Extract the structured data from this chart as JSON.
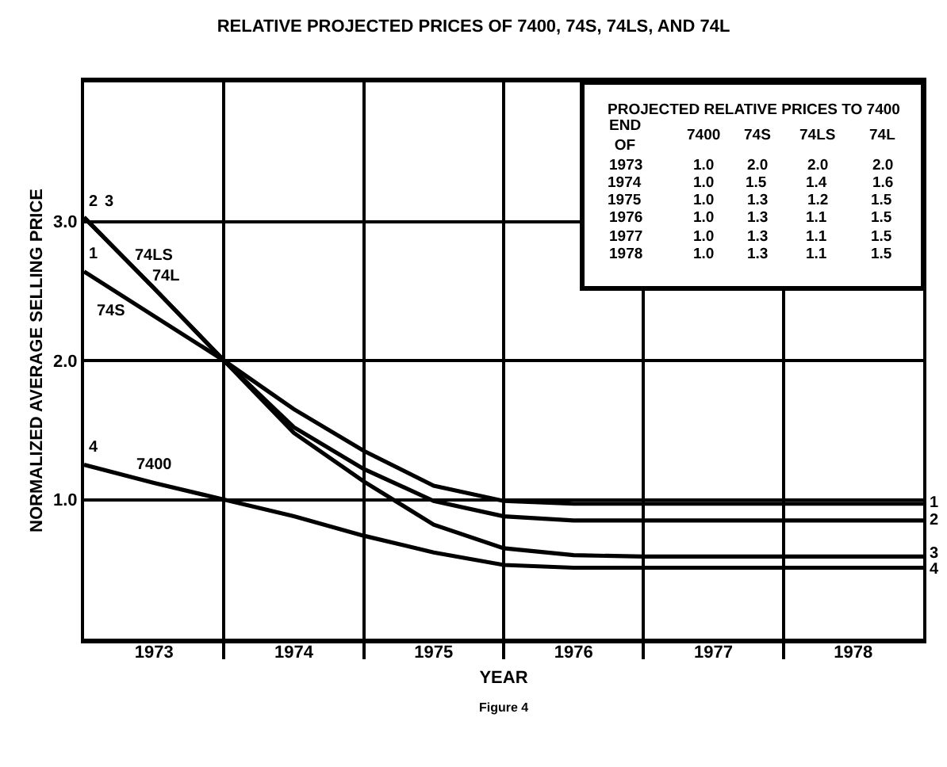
{
  "chart_data": {
    "type": "line",
    "title": "RELATIVE PROJECTED PRICES OF 7400, 74S, 74LS, AND 74L",
    "xlabel": "YEAR",
    "ylabel": "NORMALIZED AVERAGE SELLING PRICE",
    "x": [
      1973,
      1973.5,
      1974,
      1974.5,
      1975,
      1975.5,
      1976,
      1976.5,
      1977,
      1978,
      1979
    ],
    "series": [
      {
        "color": "#000000",
        "values": [
          2.64,
          2.32,
          2.0,
          1.65,
          1.35,
          1.1,
          0.99,
          0.97,
          0.97,
          0.97,
          0.97
        ]
      },
      {
        "color": "#000000",
        "values": [
          3.03,
          2.52,
          2.0,
          1.52,
          1.22,
          0.99,
          0.88,
          0.85,
          0.85,
          0.85,
          0.85
        ]
      },
      {
        "color": "#000000",
        "values": [
          3.03,
          2.52,
          2.0,
          1.48,
          1.13,
          0.82,
          0.65,
          0.6,
          0.59,
          0.59,
          0.59
        ]
      },
      {
        "color": "#000000",
        "values": [
          1.25,
          1.12,
          1.0,
          0.88,
          0.74,
          0.62,
          0.53,
          0.51,
          0.51,
          0.51,
          0.51
        ]
      }
    ],
    "xlim": [
      1973,
      1979
    ],
    "xticks": [
      {
        "value": 1974,
        "label": null
      },
      {
        "value": 1975,
        "label": null
      },
      {
        "value": 1976,
        "label": null
      },
      {
        "value": 1977,
        "label": null
      },
      {
        "value": 1978,
        "label": null
      },
      {
        "value": 1973.5,
        "label": "1973"
      },
      {
        "value": 1974.5,
        "label": "1974"
      },
      {
        "value": 1975.5,
        "label": "1975"
      },
      {
        "value": 1976.5,
        "label": "1976"
      },
      {
        "value": 1977.5,
        "label": "1977"
      },
      {
        "value": 1978.5,
        "label": "1978"
      }
    ],
    "ylim": [
      0,
      4
    ],
    "yticks": [
      {
        "value": 1,
        "label": "1.0"
      },
      {
        "value": 2,
        "label": "2.0"
      },
      {
        "value": 3,
        "label": "3.0"
      }
    ],
    "grid": true,
    "legend": false,
    "marker": "none",
    "line_style": "solid",
    "annotations": [
      "PROJECTED RELATIVE PRICES TO 7400",
      "END\nOF",
      "7400",
      "74S",
      "74LS",
      "74L",
      "1973",
      "1.0",
      "2.0",
      "2.0",
      "2.0",
      "1974",
      "1.0",
      "1.5",
      "1.4",
      "1.6",
      "1975",
      "1.0",
      "1.3",
      "1.2",
      "1.5",
      "1976",
      "1.0",
      "1.3",
      "1.1",
      "1.5",
      "1977",
      "1.0",
      "1.3",
      "1.1",
      "1.5",
      "1978",
      "1.0",
      "1.3",
      "1.1",
      "1.5",
      "Figure 4",
      "74LS",
      "74L",
      "74S",
      "7400",
      "2",
      "3",
      "1",
      "4",
      "1",
      "2",
      "3",
      "4"
    ]
  }
}
